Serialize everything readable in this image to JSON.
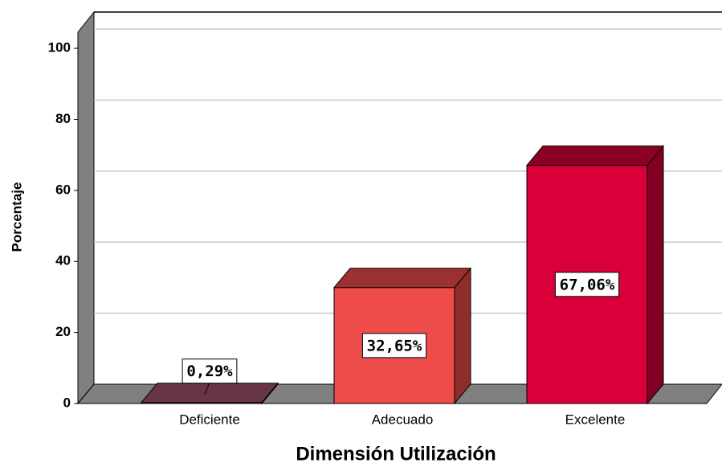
{
  "chart_data": {
    "type": "bar3d",
    "x_label": "Dimensión Utilización",
    "y_label": "Porcentaje",
    "categories": [
      "Deficiente",
      "Adecuado",
      "Excelente"
    ],
    "values": [
      0.29,
      32.65,
      67.06
    ],
    "value_labels": [
      "0,29%",
      "32,65%",
      "67,06%"
    ],
    "colors": [
      "#a0506f",
      "#ee4b4b",
      "#d9003a"
    ],
    "ylim": [
      0,
      105
    ],
    "yticks": [
      0,
      20,
      40,
      60,
      80,
      100
    ],
    "grid": true
  }
}
